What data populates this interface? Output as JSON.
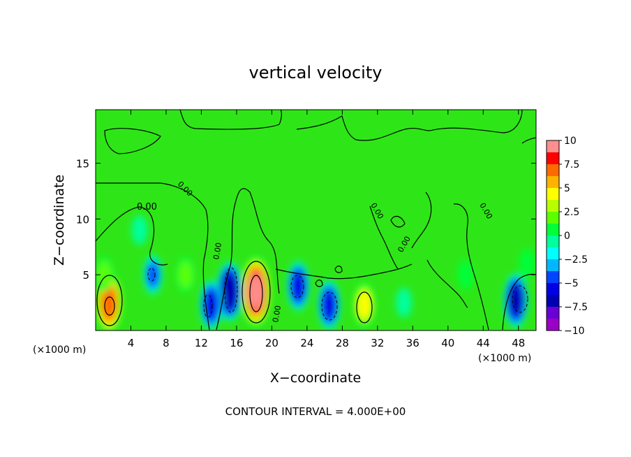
{
  "chart_data": {
    "type": "heatmap",
    "title": "vertical velocity",
    "xlabel": "X−coordinate",
    "ylabel": "Z−coordinate",
    "xunit": "(×1000 m)",
    "xlim": [
      0,
      50
    ],
    "ylim": [
      0,
      19.8
    ],
    "xticks": [
      4,
      8,
      12,
      16,
      20,
      24,
      28,
      32,
      36,
      40,
      44,
      48
    ],
    "yticks": [
      5,
      10,
      15
    ],
    "footer": "CONTOUR INTERVAL = 4.000E+00",
    "contour_label": "0.00",
    "colorbar": {
      "ticks": [
        "10",
        "7.5",
        "5",
        "2.5",
        "0",
        "−2.5",
        "−5",
        "−7.5",
        "−10"
      ],
      "range": [
        -10,
        10
      ],
      "colors": [
        "#ff8e8e",
        "#ff0000",
        "#ff6a00",
        "#ffb300",
        "#ffff00",
        "#b9ff00",
        "#5cff00",
        "#00ff37",
        "#00ff9d",
        "#00ffff",
        "#00b7ff",
        "#0046ff",
        "#0000e6",
        "#0000b3",
        "#6a00d5",
        "#9b00c6"
      ]
    },
    "features": [
      {
        "x": 1.5,
        "z": 2.5,
        "w": 8
      },
      {
        "x": 18.2,
        "z": 3.5,
        "w": 10
      },
      {
        "x": 30.5,
        "z": 2.3,
        "w": 5
      },
      {
        "x": 15.2,
        "z": 3.5,
        "w": -8
      },
      {
        "x": 13.1,
        "z": 2.3,
        "w": -6
      },
      {
        "x": 6.5,
        "z": 5,
        "w": -4
      },
      {
        "x": 23,
        "z": 4,
        "w": -6
      },
      {
        "x": 26.5,
        "z": 2.3,
        "w": -6
      },
      {
        "x": 47.7,
        "z": 2.7,
        "w": -7
      },
      {
        "x": 1,
        "z": 5,
        "w": 3
      },
      {
        "x": 10.2,
        "z": 5,
        "w": 3
      },
      {
        "x": 5,
        "z": 9,
        "w": -2
      },
      {
        "x": 35,
        "z": 2.5,
        "w": -2
      },
      {
        "x": 42,
        "z": 5,
        "w": 2
      },
      {
        "x": 49,
        "z": 6,
        "w": 2
      }
    ]
  }
}
